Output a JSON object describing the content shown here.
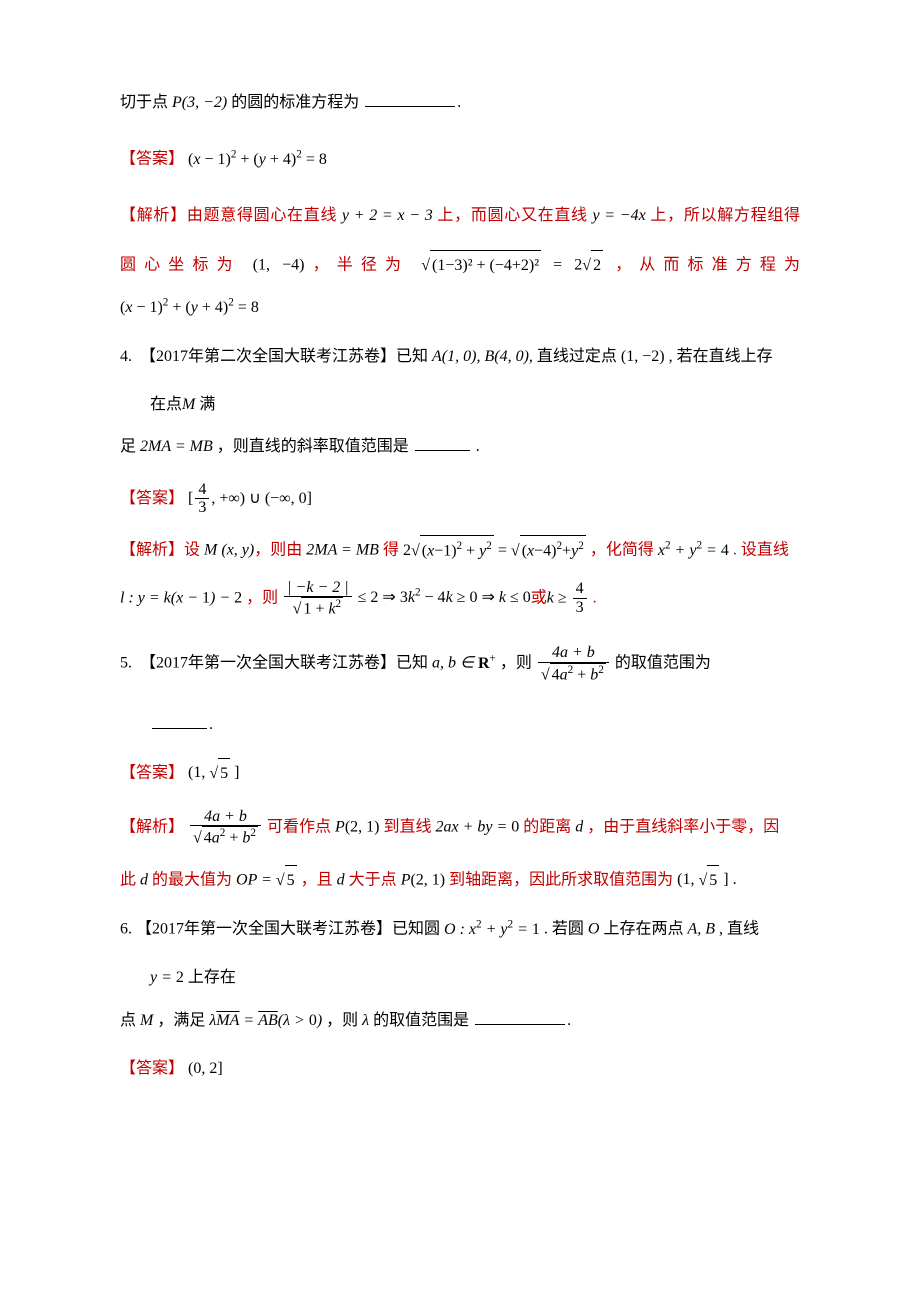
{
  "colors": {
    "text": "#000000",
    "accent": "#c00000",
    "background": "#ffffff"
  },
  "q3": {
    "stem_p1": "切于点",
    "stem_math": "P(3, −2)",
    "stem_p2": "的圆的标准方程为",
    "stem_end": ".",
    "ans_label": "【答案】",
    "ans_math": "(x − 1)² + (y + 4)² = 8",
    "exp_label": "【解析】",
    "exp_l1a": "由题意得圆心在直线",
    "exp_l1m1": "y + 2 = x − 3",
    "exp_l1b": "上，而圆心又在直线",
    "exp_l1m2": "y = −4x",
    "exp_l1c": "上，所以解方程组得",
    "exp_l2a": "圆心坐标为",
    "exp_l2m1": "(1, −4)",
    "exp_l2b": "，半径为",
    "exp_l2rad": "(1−3)² + (−4+2)²",
    "exp_l2eq": " = 2",
    "exp_l2sqrt2": "2",
    "exp_l2c": "，从而标准方程为",
    "exp_l3": "(x − 1)² + (y + 4)² = 8"
  },
  "q4": {
    "num": "4.",
    "tag": "【2017年第二次全国大联考江苏卷】",
    "p1": "已知",
    "m1": "A(1, 0), B(4, 0),",
    "p2": " 直线过定点",
    "m2": "(1, −2)",
    "p3": " , 若在直线上存",
    "p4_a": "在点",
    "p4_m": "M",
    "p4_b": " 满",
    "p5a": "足 ",
    "m3": "2MA = MB",
    "p5b": " ，则直线的斜率取值范围是",
    "p5c": " .",
    "ans_label": "【答案】",
    "ans_open": "[",
    "ans_num": "4",
    "ans_den": "3",
    "ans_rest": ", +∞) ∪ (−∞, 0]",
    "exp_label": "【解析】",
    "exp_l1a": "设",
    "exp_l1m1": "M (x, y)",
    "exp_l1b": "，则由",
    "exp_l1m2": "2MA = MB",
    "exp_l1c": "得",
    "exp_l1m3pre": "2",
    "exp_l1rad1": "(x−1)² + y²",
    "exp_l1eq": " = ",
    "exp_l1rad2": "(x−4)² + y²",
    "exp_l1d": "，化简得",
    "exp_l1m4": "x² + y² = 4",
    "exp_l1e": " . 设直线",
    "exp_l2a": "l : y = k(x − 1) − 2",
    "exp_l2b": " ，则",
    "exp_l2num": "| −k − 2 |",
    "exp_l2den_rad": "1 + k²",
    "exp_l2c": " ≤ 2 ⇒ 3k² − 4k ≥ 0 ⇒ k ≤ 0 或 k ≥ ",
    "exp_l2num2": "4",
    "exp_l2den2": "3",
    "exp_l2d": " ."
  },
  "q5": {
    "num": "5.",
    "tag": "【2017年第一次全国大联考江苏卷】",
    "p1": "已知",
    "m1": "a, b ∈ ",
    "m1b": "R",
    "m1sup": "+",
    "p2": "，则 ",
    "num_top": "4a + b",
    "den_rad": "4a² + b²",
    "p3": " 的取值范围为",
    "p4": ".",
    "ans_label": "【答案】",
    "ans_math": "(1, ",
    "ans_rad": "5",
    "ans_close": " ]",
    "exp_label": "【解析】",
    "exp_l1a": " 可看作点",
    "exp_l1m1": "P(2, 1)",
    "exp_l1b": "到直线",
    "exp_l1m2": "2ax + by = 0",
    "exp_l1c": "的距离",
    "exp_l1m3": "d",
    "exp_l1d": " ，由于直线斜率小于零，因",
    "exp_l2a": "此",
    "exp_l2m1": "d",
    "exp_l2b": " 的最大值为",
    "exp_l2m2": "OP = ",
    "exp_l2rad": "5",
    "exp_l2c": " ，且",
    "exp_l2m3": "d",
    "exp_l2d": " 大于点",
    "exp_l2m4": "P(2, 1)",
    "exp_l2e": "到轴距离，因此所求取值范围为",
    "exp_l2m5a": "(1, ",
    "exp_l2m5rad": "5",
    "exp_l2m5b": " ] ."
  },
  "q6": {
    "num": "6.",
    "tag": "【2017年第一次全国大联考江苏卷】",
    "p1": "已知圆",
    "m1": "O : x² + y² = 1",
    "p2": " . 若圆",
    "m2": "O",
    "p3": "上存在两点",
    "m3": "A, B",
    "p4": " , 直线",
    "l2m": "y = 2",
    "l2t": " 上存在",
    "l3a": "点",
    "l3m1": "M",
    "l3b": " ，满足",
    "l3m2a": "λ",
    "l3m2b": "MA",
    "l3m2c": " = ",
    "l3m2d": "AB",
    "l3m2e": "(λ > 0)",
    "l3c": "，则",
    "l3m3": "λ",
    "l3d": " 的取值范围是",
    "l3e": ".",
    "ans_label": "【答案】",
    "ans_math": "(0, 2]"
  }
}
